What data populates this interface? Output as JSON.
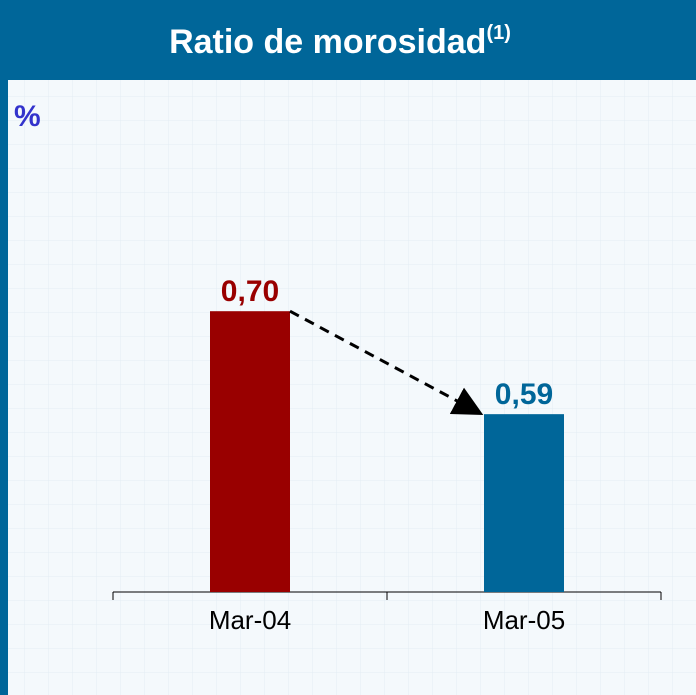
{
  "chart_data": {
    "type": "bar",
    "title": "Ratio de morosidad",
    "title_note": "(1)",
    "y_label": "%",
    "categories": [
      "Mar-04",
      "Mar-05"
    ],
    "values": [
      0.7,
      0.59
    ],
    "value_labels": [
      "0,70",
      "0,59"
    ],
    "colors": [
      "#990000",
      "#006699"
    ],
    "ylim": [
      0.4,
      0.9
    ]
  }
}
